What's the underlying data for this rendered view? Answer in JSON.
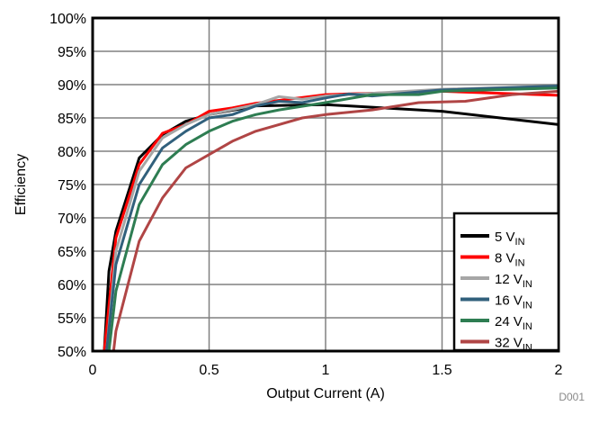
{
  "chart_data": {
    "type": "line",
    "title": "",
    "xlabel": "Output Current (A)",
    "ylabel": "Efficiency",
    "xlim": [
      0,
      2
    ],
    "ylim": [
      50,
      100
    ],
    "xticks": [
      "0",
      "0.5",
      "1",
      "1.5",
      "2"
    ],
    "yticks": [
      "50%",
      "55%",
      "60%",
      "65%",
      "70%",
      "75%",
      "80%",
      "85%",
      "90%",
      "95%",
      "100%"
    ],
    "grid": true,
    "legend_placement": "bottom-right",
    "annotation": "D001",
    "series": [
      {
        "name": "5 V",
        "sub": "IN",
        "color": "#000000",
        "x": [
          0.05,
          0.07,
          0.1,
          0.2,
          0.3,
          0.4,
          0.5,
          0.7,
          1.0,
          1.5,
          2.0
        ],
        "y": [
          50,
          62,
          68,
          79,
          82.5,
          84.5,
          85.5,
          86.8,
          87,
          86,
          84
        ]
      },
      {
        "name": "8 V",
        "sub": "IN",
        "color": "#ff0000",
        "x": [
          0.05,
          0.1,
          0.2,
          0.3,
          0.4,
          0.5,
          0.6,
          0.7,
          1.0,
          1.5,
          2.0
        ],
        "y": [
          50,
          67,
          78,
          82.7,
          84,
          86,
          86.5,
          87.2,
          88.5,
          89,
          88.4
        ]
      },
      {
        "name": "12 V",
        "sub": "IN",
        "color": "#a6a6a6",
        "x": [
          0.06,
          0.1,
          0.2,
          0.3,
          0.4,
          0.5,
          0.7,
          0.8,
          0.9,
          1.0,
          1.5,
          2.0
        ],
        "y": [
          50,
          65,
          77,
          82,
          84,
          85.5,
          87,
          88.2,
          87.8,
          88.3,
          89.3,
          89.8
        ]
      },
      {
        "name": "16 V",
        "sub": "IN",
        "color": "#31607c",
        "x": [
          0.06,
          0.1,
          0.2,
          0.3,
          0.4,
          0.5,
          0.6,
          0.7,
          0.8,
          0.9,
          1.0,
          1.1,
          1.2,
          1.5,
          2.0
        ],
        "y": [
          50,
          63,
          75,
          80.5,
          83,
          85,
          85.5,
          86.8,
          87.5,
          87.3,
          88,
          88.6,
          88.3,
          89.2,
          89.8
        ]
      },
      {
        "name": "24 V",
        "sub": "IN",
        "color": "#2e7d52",
        "x": [
          0.07,
          0.1,
          0.2,
          0.3,
          0.4,
          0.5,
          0.6,
          0.7,
          0.8,
          1.0,
          1.2,
          1.4,
          1.5,
          2.0
        ],
        "y": [
          50,
          59,
          72,
          78,
          81,
          83,
          84.5,
          85.5,
          86.2,
          87.3,
          88.5,
          88.5,
          89,
          89.5
        ]
      },
      {
        "name": "32 V",
        "sub": "IN",
        "color": "#b04545",
        "x": [
          0.09,
          0.1,
          0.2,
          0.3,
          0.4,
          0.5,
          0.6,
          0.7,
          0.8,
          0.9,
          1.0,
          1.2,
          1.4,
          1.6,
          1.8,
          2.0
        ],
        "y": [
          50,
          53,
          66.5,
          73,
          77.5,
          79.5,
          81.5,
          83,
          84,
          85,
          85.5,
          86.2,
          87.3,
          87.5,
          88.5,
          89
        ]
      }
    ]
  }
}
